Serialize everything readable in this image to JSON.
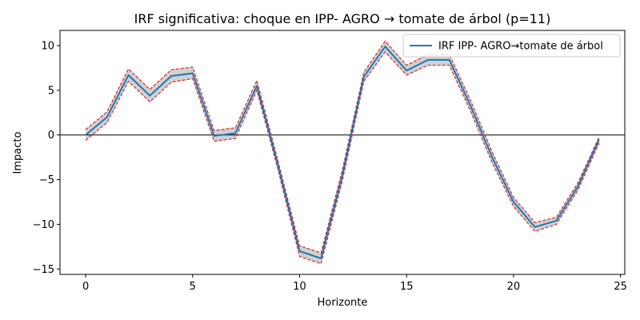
{
  "chart_data": {
    "type": "line",
    "title": "IRF significativa: choque en IPP- AGRO → tomate de árbol (p=11)",
    "xlabel": "Horizonte",
    "ylabel": "Impacto",
    "xlim": [
      -1.2,
      25.2
    ],
    "ylim": [
      -15.6,
      11.7
    ],
    "xticks": [
      0,
      5,
      10,
      15,
      20,
      25
    ],
    "yticks": [
      -15,
      -10,
      -5,
      0,
      5,
      10
    ],
    "grid": false,
    "legend_position": "top-right",
    "zero_line": 0,
    "x": [
      0,
      1,
      2,
      3,
      4,
      5,
      6,
      7,
      8,
      9,
      10,
      11,
      12,
      13,
      14,
      15,
      16,
      17,
      18,
      19,
      20,
      21,
      22,
      23,
      24
    ],
    "series": [
      {
        "name": "IRF IPP- AGRO→tomate de árbol",
        "color": "#1f77b4",
        "values": [
          0.0,
          2.0,
          6.7,
          4.4,
          6.6,
          6.9,
          -0.1,
          0.2,
          5.5,
          -3.5,
          -13.0,
          -13.8,
          -4.5,
          6.5,
          9.9,
          7.2,
          8.4,
          8.4,
          3.2,
          -2.5,
          -7.5,
          -10.3,
          -9.6,
          -5.8,
          -0.5
        ]
      }
    ],
    "bands": {
      "color": "#d62728",
      "fill": "#cccccc",
      "upper": [
        0.6,
        2.6,
        7.4,
        5.1,
        7.3,
        7.6,
        0.5,
        0.8,
        6.1,
        -3.0,
        -12.4,
        -13.2,
        -3.9,
        7.0,
        10.5,
        7.8,
        9.0,
        9.0,
        3.8,
        -1.9,
        -7.0,
        -9.8,
        -9.2,
        -5.4,
        -0.2
      ],
      "lower": [
        -0.6,
        1.4,
        6.0,
        3.7,
        5.9,
        6.3,
        -0.7,
        -0.4,
        5.0,
        -4.0,
        -13.6,
        -14.4,
        -5.1,
        6.0,
        9.3,
        6.7,
        7.8,
        7.8,
        2.6,
        -3.1,
        -8.0,
        -10.8,
        -10.0,
        -6.2,
        -0.9
      ]
    }
  }
}
